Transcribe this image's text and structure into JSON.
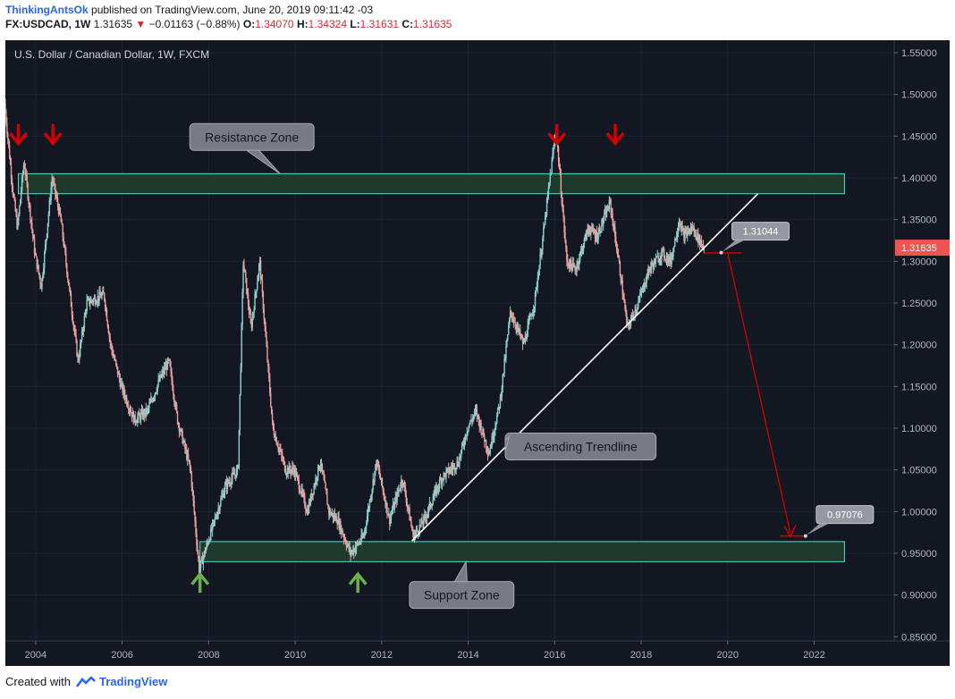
{
  "header": {
    "author": "ThinkingAntsOk",
    "published": "published on TradingView.com, June 20, 2019 09:11:42 -03",
    "symbol": "FX:USDCAD, 1W",
    "last": "1.31635",
    "change": "−0.01163 (−0.88%)",
    "o_label": "O:",
    "o": "1.34070",
    "h_label": "H:",
    "h": "1.34324",
    "l_label": "L:",
    "l": "1.31631",
    "c_label": "C:",
    "c": "1.31635"
  },
  "footer": {
    "created_with": "Created with",
    "brand": "TradingView"
  },
  "colors": {
    "background": "#131722",
    "up": "#8ad1cc",
    "down": "#e8a0a0",
    "zone_fill": "#1e3a2c",
    "zone_border": "#5fd9d2",
    "red_arrow": "#d20000",
    "green_arrow": "#6cb04a",
    "price_tag": "#f05350"
  },
  "chart_data": {
    "type": "candlestick",
    "title": "U.S. Dollar / Canadian Dollar, 1W, FXCM",
    "x_ticks": [
      "2004",
      "2006",
      "2008",
      "2010",
      "2012",
      "2014",
      "2016",
      "2018",
      "2020",
      "2022"
    ],
    "y_ticks": [
      "1.55000",
      "1.50000",
      "1.45000",
      "1.40000",
      "1.35000",
      "1.30000",
      "1.25000",
      "1.20000",
      "1.15000",
      "1.10000",
      "1.05000",
      "1.00000",
      "0.95000",
      "0.90000",
      "0.85000"
    ],
    "ylim": [
      0.845,
      1.565
    ],
    "xlim": [
      2003.3,
      2023.85
    ],
    "last_price_tag": "1.31635",
    "price_path": [
      [
        2003.3,
        1.49
      ],
      [
        2003.5,
        1.38
      ],
      [
        2003.6,
        1.34
      ],
      [
        2003.75,
        1.42
      ],
      [
        2004.0,
        1.31
      ],
      [
        2004.15,
        1.27
      ],
      [
        2004.4,
        1.4
      ],
      [
        2004.6,
        1.35
      ],
      [
        2005.0,
        1.18
      ],
      [
        2005.2,
        1.25
      ],
      [
        2005.6,
        1.26
      ],
      [
        2005.75,
        1.2
      ],
      [
        2006.0,
        1.15
      ],
      [
        2006.3,
        1.11
      ],
      [
        2006.6,
        1.12
      ],
      [
        2006.9,
        1.16
      ],
      [
        2007.1,
        1.18
      ],
      [
        2007.3,
        1.11
      ],
      [
        2007.6,
        1.05
      ],
      [
        2007.8,
        0.93
      ],
      [
        2008.1,
        0.98
      ],
      [
        2008.4,
        1.03
      ],
      [
        2008.7,
        1.05
      ],
      [
        2008.82,
        1.3
      ],
      [
        2009.0,
        1.22
      ],
      [
        2009.2,
        1.3
      ],
      [
        2009.5,
        1.1
      ],
      [
        2009.8,
        1.05
      ],
      [
        2010.0,
        1.05
      ],
      [
        2010.3,
        1.0
      ],
      [
        2010.6,
        1.06
      ],
      [
        2010.8,
        1.0
      ],
      [
        2011.0,
        0.99
      ],
      [
        2011.3,
        0.95
      ],
      [
        2011.6,
        0.97
      ],
      [
        2011.9,
        1.06
      ],
      [
        2012.2,
        0.99
      ],
      [
        2012.5,
        1.04
      ],
      [
        2012.75,
        0.97
      ],
      [
        2013.0,
        0.99
      ],
      [
        2013.4,
        1.04
      ],
      [
        2013.8,
        1.06
      ],
      [
        2014.0,
        1.1
      ],
      [
        2014.2,
        1.12
      ],
      [
        2014.5,
        1.07
      ],
      [
        2014.75,
        1.13
      ],
      [
        2015.0,
        1.24
      ],
      [
        2015.3,
        1.2
      ],
      [
        2015.55,
        1.25
      ],
      [
        2015.75,
        1.33
      ],
      [
        2016.05,
        1.46
      ],
      [
        2016.3,
        1.3
      ],
      [
        2016.5,
        1.29
      ],
      [
        2016.8,
        1.34
      ],
      [
        2017.0,
        1.33
      ],
      [
        2017.3,
        1.37
      ],
      [
        2017.5,
        1.3
      ],
      [
        2017.7,
        1.22
      ],
      [
        2017.95,
        1.25
      ],
      [
        2018.2,
        1.29
      ],
      [
        2018.5,
        1.31
      ],
      [
        2018.7,
        1.3
      ],
      [
        2018.9,
        1.35
      ],
      [
        2019.0,
        1.33
      ],
      [
        2019.2,
        1.34
      ],
      [
        2019.47,
        1.316
      ]
    ],
    "annotations": {
      "resistance_zone": {
        "label": "Resistance Zone",
        "range": [
          1.381,
          1.405
        ],
        "x_start": 2003.6,
        "x_end": 2022.7
      },
      "support_zone": {
        "label": "Support Zone",
        "range": [
          0.94,
          0.964
        ],
        "x_start": 2007.8,
        "x_end": 2022.7
      },
      "trendline": {
        "label": "Ascending Trendline",
        "start": [
          2012.7,
          0.965
        ],
        "end": [
          2020.7,
          1.381
        ]
      },
      "callout_high": {
        "label": "1.31044",
        "value": 1.31044,
        "x": 2019.85
      },
      "callout_low": {
        "label": "0.97076",
        "value": 0.97076,
        "x": 2021.8
      },
      "projection": {
        "from": [
          2020.0,
          1.31
        ],
        "to": [
          2021.45,
          0.97
        ]
      },
      "red_arrows_x": [
        2003.6,
        2004.4,
        2016.05,
        2017.4
      ],
      "green_arrows_x": [
        2007.8,
        2011.45
      ]
    }
  }
}
